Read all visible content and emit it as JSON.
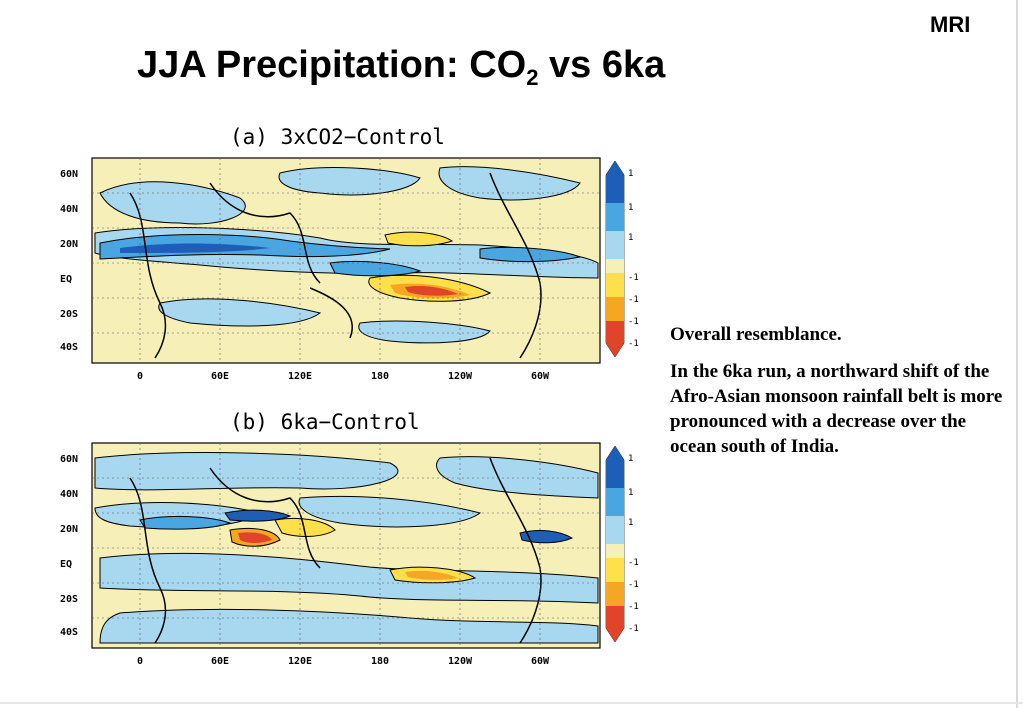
{
  "header": {
    "logo": "MRI",
    "title_main": "JJA Precipitation: CO",
    "title_sub": "2",
    "title_tail": " vs 6ka"
  },
  "notes": [
    "Overall resemblance.",
    "In the 6ka run, a northward shift of the Afro-Asian monsoon rainfall belt is more pronounced with a decrease over the ocean south of India."
  ],
  "maps": [
    {
      "title": "(a) 3xCO2−Control",
      "lat_labels": [
        "60N",
        "40N",
        "20N",
        "EQ",
        "20S",
        "40S"
      ],
      "lon_labels": [
        "0",
        "60E",
        "120E",
        "180",
        "120W",
        "60W"
      ],
      "colorbar_ticks": [
        "1",
        "1",
        "1",
        "-1",
        "-1",
        "-1",
        "-1"
      ]
    },
    {
      "title": "(b) 6ka−Control",
      "lat_labels": [
        "60N",
        "40N",
        "20N",
        "EQ",
        "20S",
        "40S"
      ],
      "lon_labels": [
        "0",
        "60E",
        "120E",
        "180",
        "120W",
        "60W"
      ],
      "colorbar_ticks": [
        "1",
        "1",
        "1",
        "-1",
        "-1",
        "-1",
        "-1"
      ]
    }
  ],
  "colors": {
    "positive_light": "#a8d8f0",
    "positive_mid": "#4aa6e0",
    "positive_strong": "#1d5fb8",
    "neutral": "#f6f0b8",
    "negative_light": "#ffe04a",
    "negative_mid": "#f5a623",
    "negative_strong": "#e0452a"
  }
}
